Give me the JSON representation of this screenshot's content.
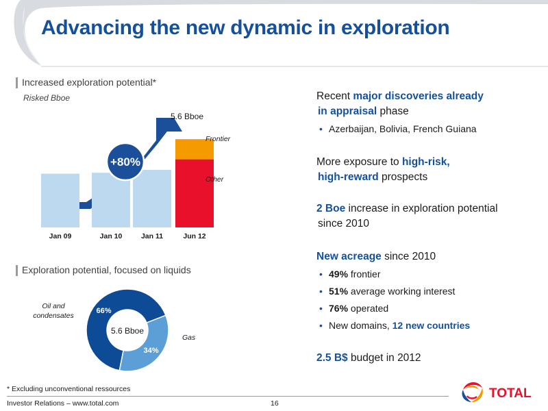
{
  "title": "Advancing the new dynamic in exploration",
  "left": {
    "section1": {
      "heading": "Increased exploration potential*",
      "subheading": "Risked Bboe"
    },
    "section2": {
      "heading": "Exploration potential, focused on liquids"
    }
  },
  "chart_data": [
    {
      "type": "bar",
      "categories": [
        "Jan 09",
        "Jan 10",
        "Jan 11",
        "Jun 12"
      ],
      "series": [
        {
          "name": "Other",
          "values": [
            2.8,
            2.85,
            3.0,
            3.55
          ]
        },
        {
          "name": "Frontier",
          "values": [
            0,
            0,
            0,
            1.05
          ]
        }
      ],
      "annotations": [
        "5.6 Bboe",
        "+80%",
        "Frontier",
        "Other"
      ],
      "ylim": [
        0,
        6.5
      ],
      "colors": {
        "base": "#bcd9ef",
        "other": "#e8102a",
        "frontier": "#f59a00",
        "arrow": "#1b4f9a"
      }
    },
    {
      "type": "pie",
      "donut": true,
      "center_label": "5.6 Bboe",
      "slices": [
        {
          "name": "Oil and condensates",
          "value": 66,
          "label": "66%",
          "color": "#0e4b96"
        },
        {
          "name": "Gas",
          "value": 34,
          "label": "34%",
          "color": "#5b9fd6"
        }
      ],
      "labels": {
        "oil_line1": "Oil and",
        "oil_line2": "condensates",
        "gas": "Gas"
      }
    }
  ],
  "right": {
    "p1": {
      "t1": "Recent ",
      "h1": "major discoveries already",
      "h2": "in appraisal",
      "t2": " phase"
    },
    "b1": "Azerbaijan, Bolivia, French Guiana",
    "p2": {
      "t1": "More exposure to ",
      "h1": "high-risk,",
      "h2": "high-reward",
      "t2": " prospects"
    },
    "p3": {
      "h1": "2 Boe",
      "t1": " increase in exploration potential",
      "t2": "since 2010"
    },
    "p4": {
      "h1": "New acreage",
      "t1": " since 2010"
    },
    "bullets": [
      {
        "bold": "49%",
        "text": " frontier"
      },
      {
        "bold": "51%",
        "text": " average working interest"
      },
      {
        "bold": "76%",
        "text": " operated"
      }
    ],
    "bullet4": {
      "text": "New domains, ",
      "hl": "12 new countries"
    },
    "p5": {
      "h1": "2.5 B$",
      "t1": " budget in 2012"
    }
  },
  "footer": {
    "footnote": "* Excluding unconventional ressources",
    "left": "Investor Relations – www.total.com",
    "page": "16",
    "logo_text": "TOTAL"
  }
}
